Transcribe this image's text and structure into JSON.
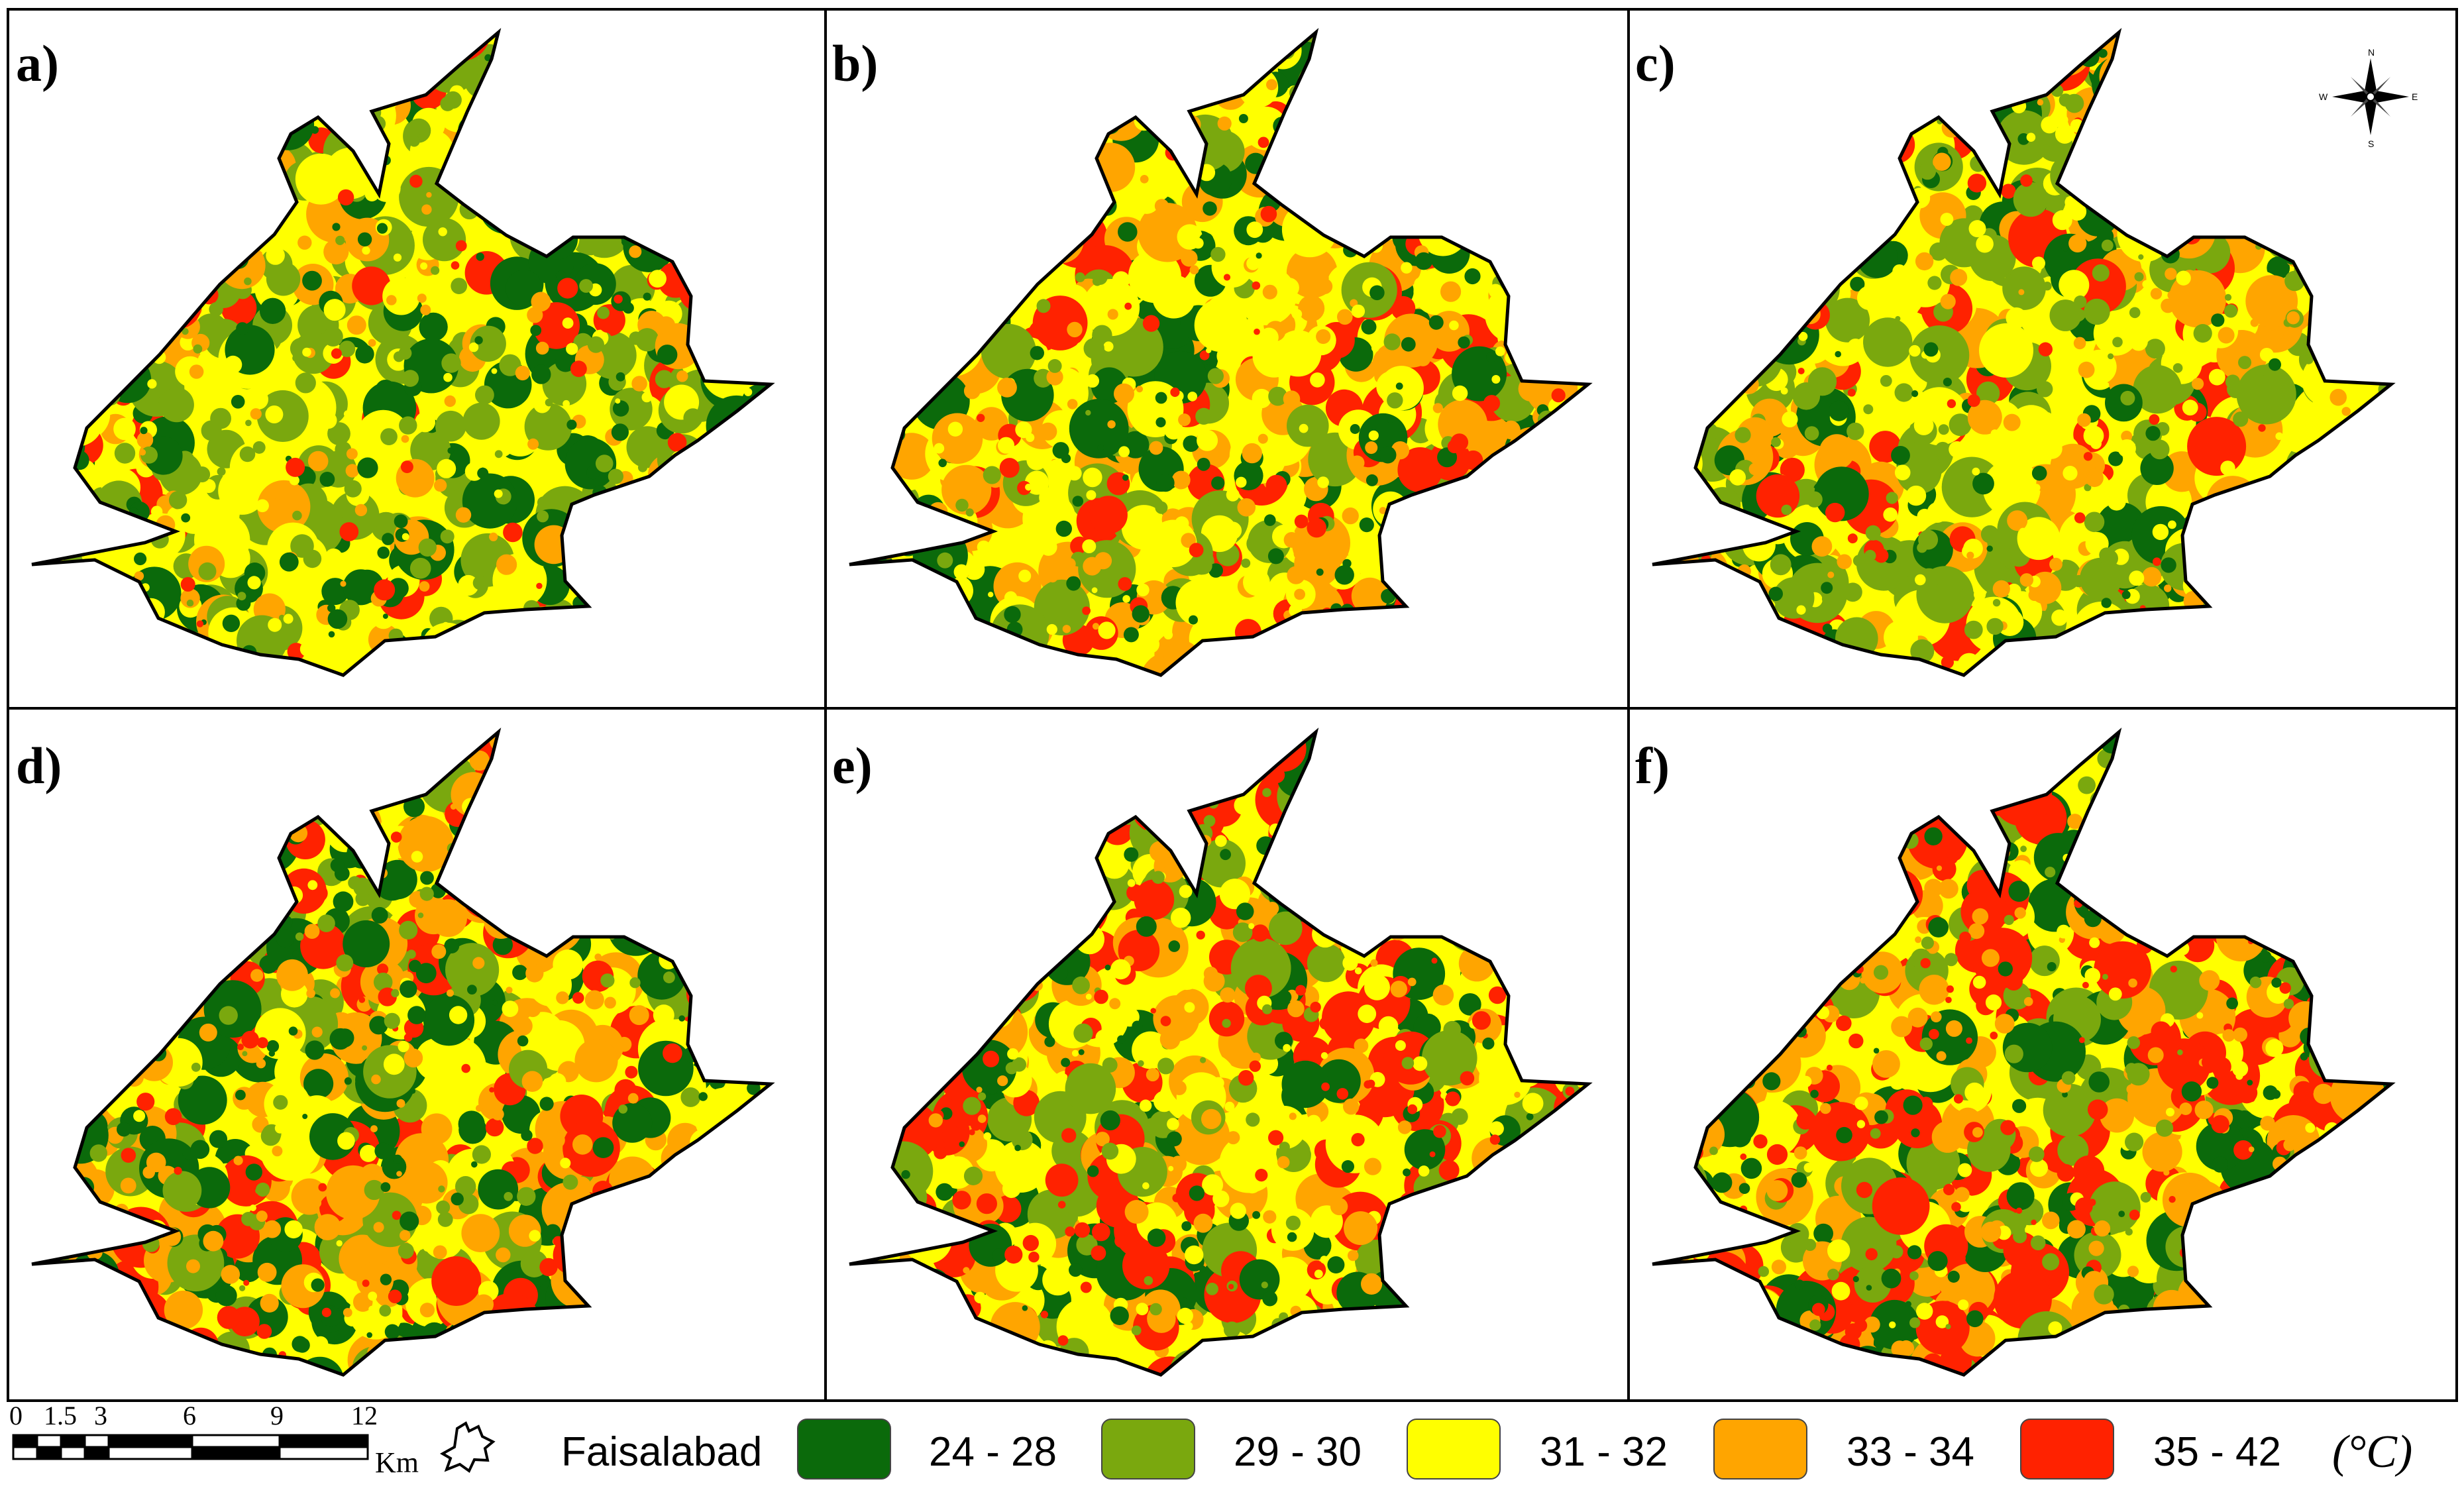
{
  "figure": {
    "panels": [
      {
        "label": "a)",
        "mix": [
          0.22,
          0.3,
          0.26,
          0.14,
          0.08
        ]
      },
      {
        "label": "b)",
        "mix": [
          0.2,
          0.16,
          0.28,
          0.25,
          0.11
        ]
      },
      {
        "label": "c)",
        "mix": [
          0.15,
          0.26,
          0.26,
          0.24,
          0.09
        ]
      },
      {
        "label": "d)",
        "mix": [
          0.24,
          0.16,
          0.16,
          0.3,
          0.14
        ]
      },
      {
        "label": "e)",
        "mix": [
          0.17,
          0.17,
          0.2,
          0.21,
          0.25
        ]
      },
      {
        "label": "f)",
        "mix": [
          0.19,
          0.16,
          0.14,
          0.24,
          0.27
        ]
      }
    ]
  },
  "compass": {
    "north": "N",
    "south": "S",
    "east": "E",
    "west": "W"
  },
  "scale_bar": {
    "ticks": [
      "0",
      "1.5",
      "3",
      "6",
      "9",
      "12"
    ],
    "unit": "Km"
  },
  "legend": {
    "title": "Faisalabad",
    "unit": "(°C)",
    "classes": [
      {
        "range": "24 - 28",
        "color": "#0b6a0b"
      },
      {
        "range": "29 - 30",
        "color": "#7aa80e"
      },
      {
        "range": "31 - 32",
        "color": "#ffff00"
      },
      {
        "range": "33 - 34",
        "color": "#ffa500"
      },
      {
        "range": "35 - 42",
        "color": "#ff2200"
      }
    ]
  }
}
